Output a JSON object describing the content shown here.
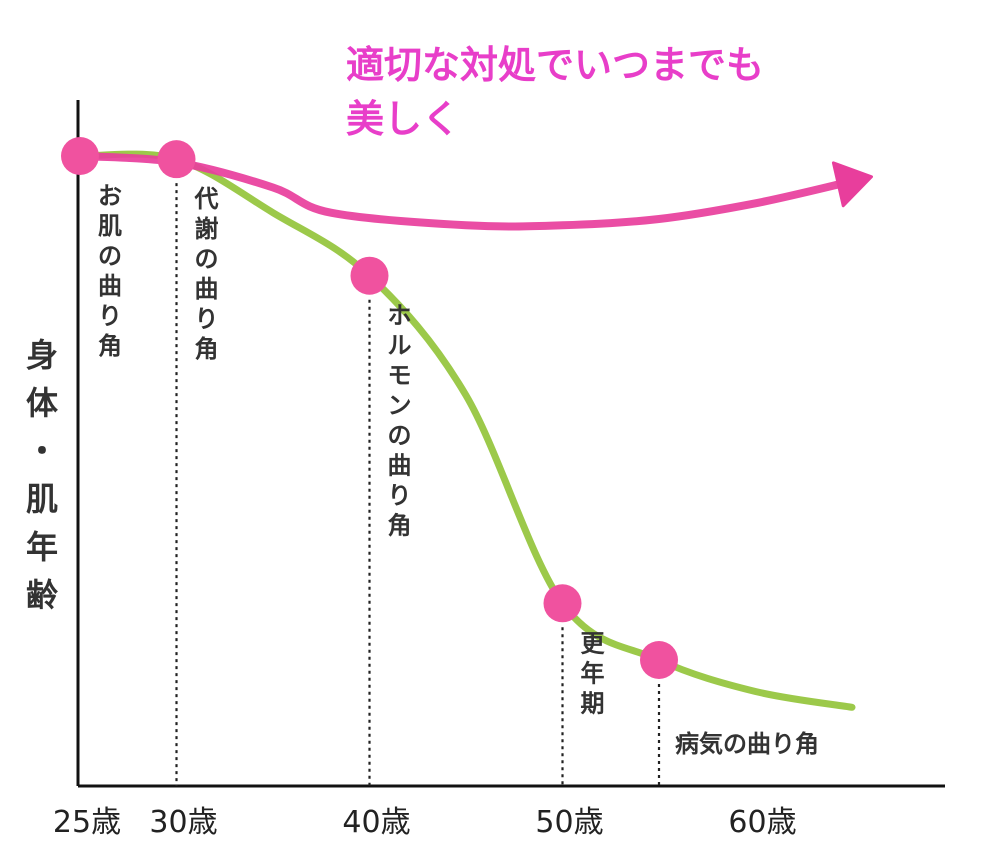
{
  "chart_data": {
    "type": "line",
    "ylabel": "身体・肌年齢",
    "x_ticks": [
      "25歳",
      "30歳",
      "40歳",
      "50歳",
      "60歳"
    ],
    "grid": false,
    "annotation": {
      "line1": "適切な対処でいつまでも",
      "line2": "美しく",
      "color": "#e83ec9"
    },
    "series": [
      {
        "name": "",
        "role": "aging-curve",
        "color": "#9cc94a",
        "x": [
          25,
          30,
          35,
          40,
          45,
          50,
          55,
          60,
          65
        ],
        "y": [
          100,
          99.5,
          91,
          81,
          62,
          29,
          20,
          15,
          12.5
        ]
      },
      {
        "name": "",
        "role": "care-arrow",
        "color": "#e83e9c",
        "x": [
          25,
          30,
          35,
          38,
          45,
          50,
          55,
          60,
          65
        ],
        "y": [
          100,
          99,
          95,
          91,
          89,
          89,
          90,
          92.5,
          96
        ]
      }
    ],
    "turning_points": [
      {
        "x": 25,
        "y": 100,
        "label": "お肌の曲り角"
      },
      {
        "x": 30,
        "y": 99.5,
        "label": "代謝の曲り角"
      },
      {
        "x": 40,
        "y": 81,
        "label": "ホルモンの曲り角"
      },
      {
        "x": 50,
        "y": 29,
        "label": "更年期"
      },
      {
        "x": 55,
        "y": 20,
        "label": "病気の曲り角"
      }
    ],
    "point_color": "#f0529f"
  }
}
